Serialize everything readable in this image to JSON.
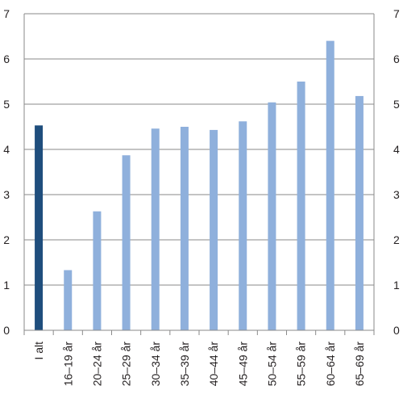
{
  "chart_data": {
    "type": "bar",
    "title": "",
    "xlabel": "",
    "ylabel": "",
    "ylim": [
      0,
      7
    ],
    "yticks": [
      0,
      1,
      2,
      3,
      4,
      5,
      6,
      7
    ],
    "grid": true,
    "categories": [
      "I alt",
      "16–19 år",
      "20–24 år",
      "25–29 år",
      "30–34 år",
      "35–39 år",
      "40–44 år",
      "45–49 år",
      "50–54 år",
      "55–59 år",
      "60–64 år",
      "65–69 år"
    ],
    "values": [
      4.53,
      1.33,
      2.63,
      3.87,
      4.46,
      4.5,
      4.43,
      4.62,
      5.04,
      5.5,
      6.4,
      5.18
    ],
    "colors": {
      "highlight": "#1f4e7d",
      "default": "#8fb0dc",
      "grid": "#8a8a8a",
      "axis": "#8a8a8a",
      "text": "#231f20"
    },
    "highlight_index": 0
  }
}
